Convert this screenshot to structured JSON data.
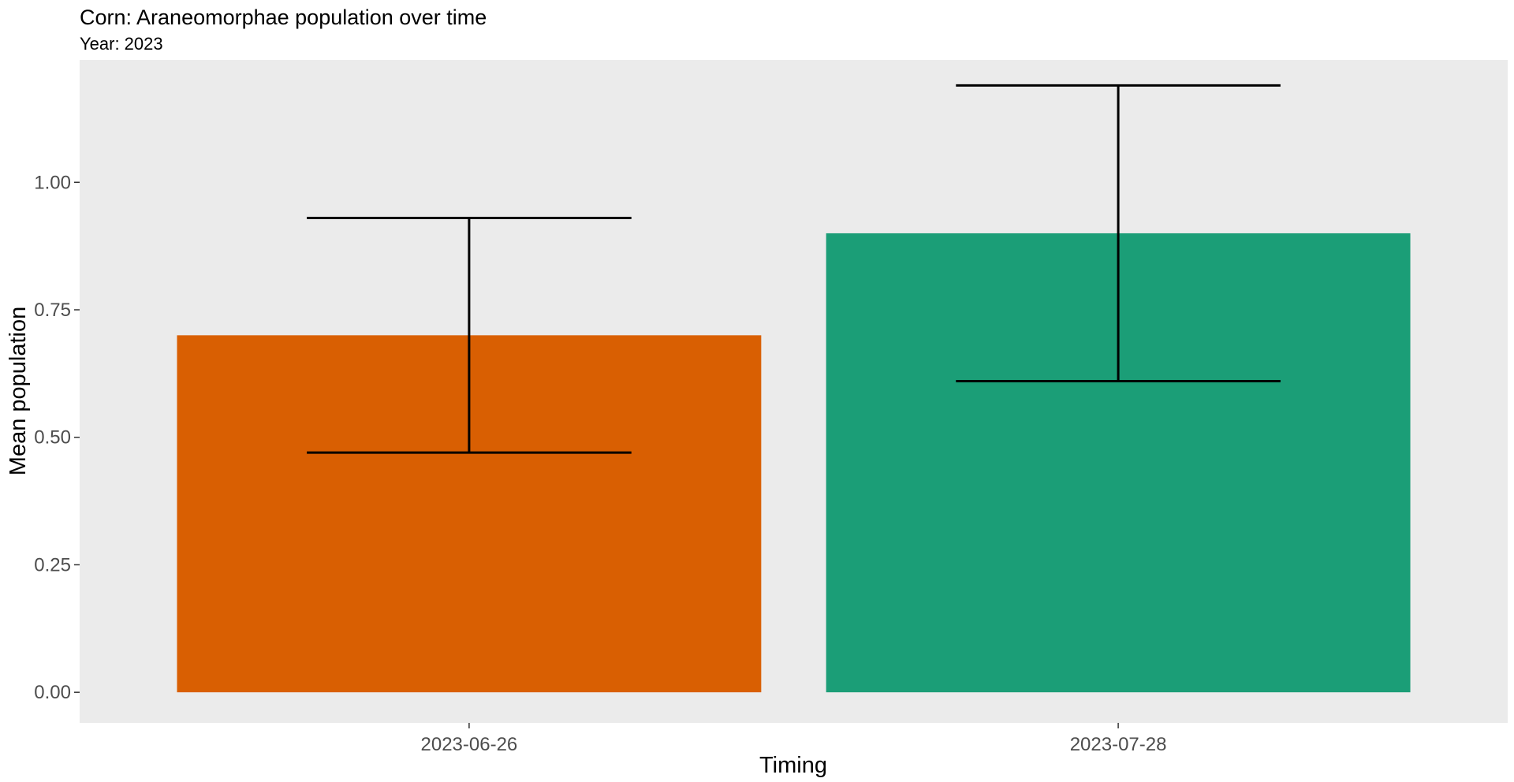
{
  "chart_data": {
    "type": "bar",
    "title": "Corn: Araneomorphae population over time",
    "subtitle": "Year: 2023",
    "xlabel": "Timing",
    "ylabel": "Mean population",
    "categories": [
      "2023-06-26",
      "2023-07-28"
    ],
    "values": [
      0.7,
      0.9
    ],
    "error_bars": [
      {
        "lower": 0.47,
        "upper": 0.93
      },
      {
        "lower": 0.61,
        "upper": 1.19
      }
    ],
    "colors": [
      "#D95F02",
      "#1B9E77"
    ],
    "ylim": [
      -0.06,
      1.24
    ],
    "yticks": [
      0.0,
      0.25,
      0.5,
      0.75,
      1.0
    ],
    "ytick_labels": [
      "0.00",
      "0.25",
      "0.50",
      "0.75",
      "1.00"
    ],
    "panel_background": "#EBEBEB",
    "grid": false,
    "legend": "none"
  }
}
